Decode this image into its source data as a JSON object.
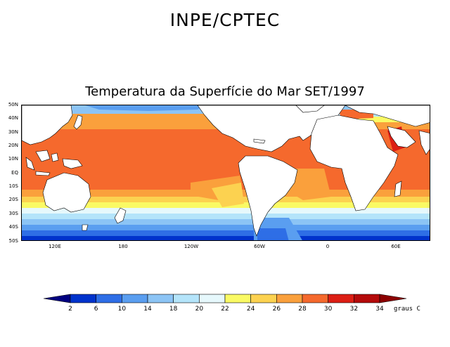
{
  "header": {
    "organization": "INPE/CPTEC"
  },
  "map": {
    "title": "Temperatura da Superfície do Mar SET/1997",
    "variable": "Sea surface temperature",
    "latitude_labels": [
      "50N",
      "40N",
      "30N",
      "20N",
      "10N",
      "EQ",
      "10S",
      "20S",
      "30S",
      "40S",
      "50S"
    ],
    "longitude_labels": [
      "120E",
      "180",
      "120W",
      "60W",
      "0",
      "60E"
    ]
  },
  "colorbar": {
    "unit": "graus C",
    "levels": [
      "2",
      "6",
      "10",
      "14",
      "18",
      "20",
      "22",
      "24",
      "26",
      "28",
      "30",
      "32",
      "34"
    ],
    "colors": [
      "#000080",
      "#0033cc",
      "#2e6ee6",
      "#5a9ef0",
      "#8cc4f5",
      "#b4e4fa",
      "#e6f8fc",
      "#fafa64",
      "#fcd250",
      "#faa03c",
      "#f5692d",
      "#dc1e14",
      "#b40a0a",
      "#8c0000"
    ],
    "land_color": "#ffffff"
  }
}
